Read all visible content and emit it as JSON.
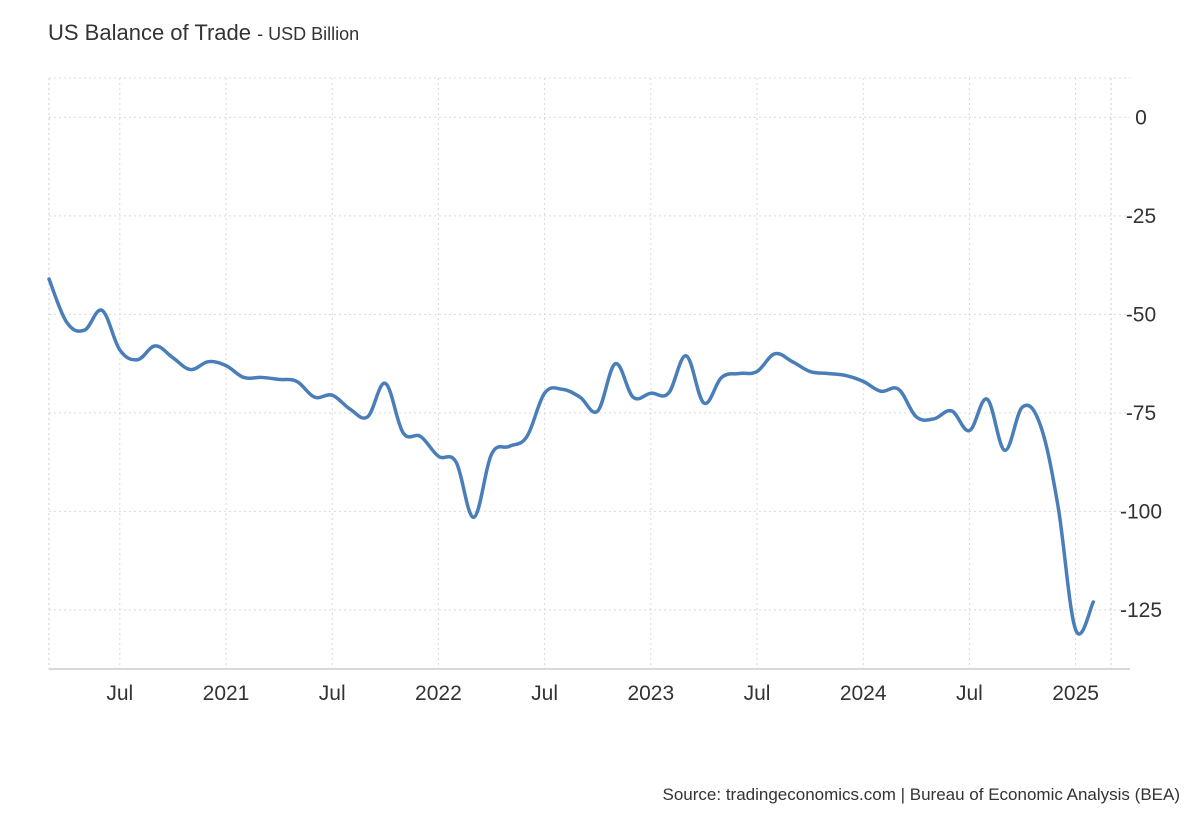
{
  "header": {
    "title": "US Balance of Trade",
    "unit": "- USD Billion"
  },
  "footer": {
    "source": "Source: tradingeconomics.com | Bureau of Economic Analysis (BEA)"
  },
  "chart_data": {
    "type": "line",
    "title": "US Balance of Trade",
    "ylabel": "USD Billion",
    "ylim": [
      -140,
      10
    ],
    "xlim": [
      "2020-03",
      "2025-03"
    ],
    "y_ticks": [
      0,
      -25,
      -50,
      -75,
      -100,
      -125
    ],
    "y_tick_labels": [
      "0",
      "-25",
      "-50",
      "-75",
      "-100",
      "-125"
    ],
    "x_ticks": [
      "2020-07",
      "2021-01",
      "2021-07",
      "2022-01",
      "2022-07",
      "2023-01",
      "2023-07",
      "2024-01",
      "2024-07",
      "2025-01"
    ],
    "x_tick_labels": [
      "Jul",
      "2021",
      "Jul",
      "2022",
      "Jul",
      "2023",
      "Jul",
      "2024",
      "Jul",
      "2025"
    ],
    "grid": true,
    "y_axis_position": "right",
    "line_color": "#4a7eb9",
    "series": [
      {
        "x": [
          "2020-03",
          "2020-04",
          "2020-05",
          "2020-06",
          "2020-07",
          "2020-08",
          "2020-09",
          "2020-10",
          "2020-11",
          "2020-12",
          "2021-01",
          "2021-02",
          "2021-03",
          "2021-04",
          "2021-05",
          "2021-06",
          "2021-07",
          "2021-08",
          "2021-09",
          "2021-10",
          "2021-11",
          "2021-12",
          "2022-01",
          "2022-02",
          "2022-03",
          "2022-04",
          "2022-05",
          "2022-06",
          "2022-07",
          "2022-08",
          "2022-09",
          "2022-10",
          "2022-11",
          "2022-12",
          "2023-01",
          "2023-02",
          "2023-03",
          "2023-04",
          "2023-05",
          "2023-06",
          "2023-07",
          "2023-08",
          "2023-09",
          "2023-10",
          "2023-11",
          "2023-12",
          "2024-01",
          "2024-02",
          "2024-03",
          "2024-04",
          "2024-05",
          "2024-06",
          "2024-07",
          "2024-08",
          "2024-09",
          "2024-10",
          "2024-11",
          "2024-12",
          "2025-01",
          "2025-02"
        ],
        "values": [
          -41,
          -52,
          -54,
          -49,
          -59,
          -61.5,
          -58,
          -61,
          -64,
          -62,
          -63,
          -66,
          -66,
          -66.5,
          -67,
          -71,
          -70.5,
          -74,
          -76,
          -67.5,
          -80,
          -81,
          -86,
          -87.5,
          -101.5,
          -85.5,
          -83.5,
          -81,
          -70,
          -69,
          -71,
          -74.5,
          -62.5,
          -71,
          -70,
          -70,
          -60.5,
          -72.5,
          -66,
          -65,
          -64.5,
          -60,
          -62,
          -64.5,
          -65,
          -65.5,
          -67,
          -69.5,
          -69,
          -76,
          -76.5,
          -74.5,
          -79.5,
          -71.5,
          -84.5,
          -73.5,
          -78,
          -98.5,
          -130,
          -123
        ]
      }
    ]
  }
}
